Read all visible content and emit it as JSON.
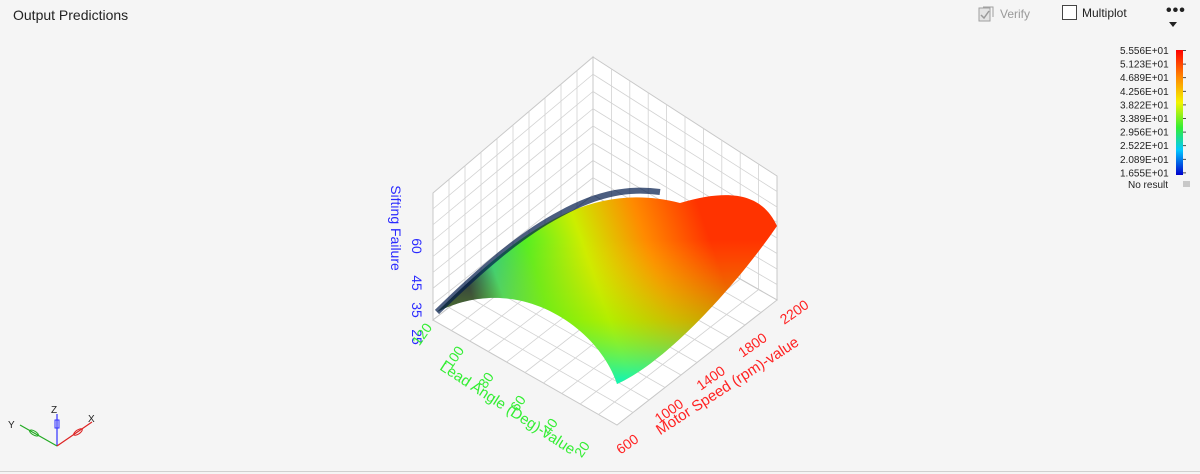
{
  "header": {
    "title": "Output Predictions",
    "verify_label": "Verify",
    "multiplot_label": "Multiplot",
    "more_label": "•••"
  },
  "legend": {
    "values": [
      "5.556E+01",
      "5.123E+01",
      "4.689E+01",
      "4.256E+01",
      "3.822E+01",
      "3.389E+01",
      "2.956E+01",
      "2.522E+01",
      "2.089E+01",
      "1.655E+01"
    ],
    "no_result": "No result"
  },
  "axes_triad": {
    "x": "X",
    "y": "Y",
    "z": "Z"
  },
  "chart_data": {
    "type": "surface",
    "zlabel": "Sifting Failure",
    "ylabel": "Lead Angle (Deg)-value",
    "xlabel": "Motor Speed (rpm)-value",
    "z_ticks": [
      "60",
      "45",
      "35",
      "25"
    ],
    "y_ticks": [
      "120",
      "100",
      "80",
      "60",
      "40",
      "20"
    ],
    "x_ticks": [
      "600",
      "1000",
      "1400",
      "1800",
      "2200"
    ],
    "z_range": [
      16.55,
      55.56
    ],
    "colorbar_min": 16.55,
    "colorbar_max": 55.56,
    "colors": {
      "zlabel": "#2a2aff",
      "ylabel": "#33ee33",
      "xlabel": "#ff2222"
    }
  }
}
